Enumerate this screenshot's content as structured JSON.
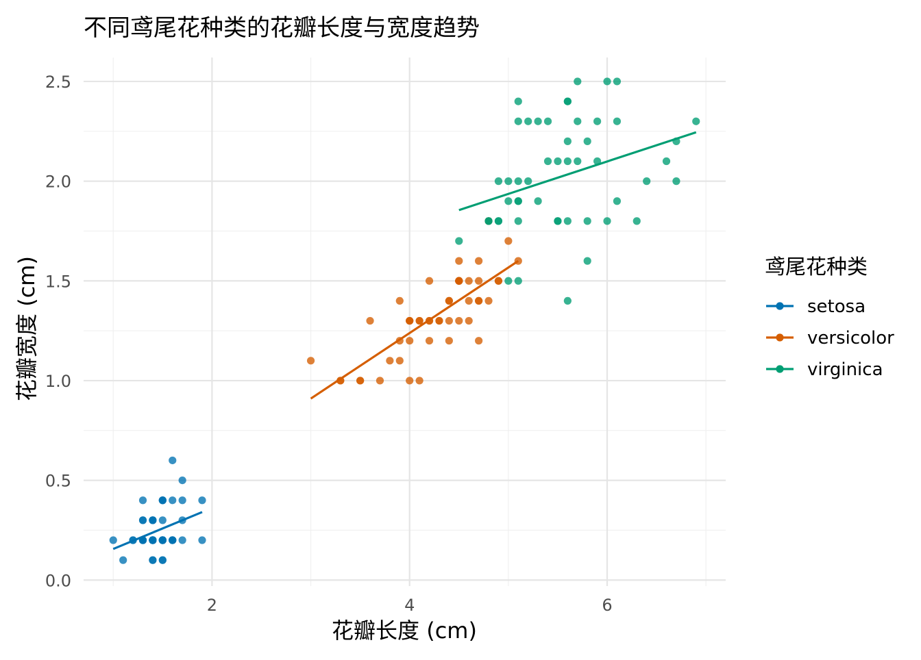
{
  "chart_data": {
    "type": "scatter",
    "title": "不同鸢尾花种类的花瓣长度与宽度趋势",
    "xlabel": "花瓣长度 (cm)",
    "ylabel": "花瓣宽度 (cm)",
    "xlim": [
      0.7,
      7.2
    ],
    "ylim": [
      -0.03,
      2.62
    ],
    "x_ticks": [
      2,
      4,
      6
    ],
    "x_tick_labels": [
      "2",
      "4",
      "6"
    ],
    "y_ticks": [
      0,
      0.5,
      1,
      1.5,
      2,
      2.5
    ],
    "y_tick_labels": [
      "0.0",
      "0.5",
      "1.0",
      "1.5",
      "2.0",
      "2.5"
    ],
    "x_minor_ticks": [
      1,
      3,
      5,
      7
    ],
    "y_minor_ticks": [
      0.25,
      0.75,
      1.25,
      1.75,
      2.25
    ],
    "grid": true,
    "legend": {
      "title": "鸢尾花种类",
      "position": "right"
    },
    "series": [
      {
        "name": "setosa",
        "color": "#0072B2",
        "trend": [
          [
            1.0,
            0.156
          ],
          [
            1.9,
            0.341
          ]
        ],
        "points": [
          [
            1.4,
            0.2
          ],
          [
            1.4,
            0.2
          ],
          [
            1.3,
            0.2
          ],
          [
            1.5,
            0.2
          ],
          [
            1.4,
            0.2
          ],
          [
            1.7,
            0.4
          ],
          [
            1.4,
            0.3
          ],
          [
            1.5,
            0.2
          ],
          [
            1.4,
            0.2
          ],
          [
            1.5,
            0.1
          ],
          [
            1.5,
            0.2
          ],
          [
            1.6,
            0.2
          ],
          [
            1.4,
            0.1
          ],
          [
            1.1,
            0.1
          ],
          [
            1.2,
            0.2
          ],
          [
            1.5,
            0.4
          ],
          [
            1.3,
            0.4
          ],
          [
            1.4,
            0.3
          ],
          [
            1.7,
            0.3
          ],
          [
            1.5,
            0.3
          ],
          [
            1.7,
            0.2
          ],
          [
            1.5,
            0.4
          ],
          [
            1.0,
            0.2
          ],
          [
            1.7,
            0.5
          ],
          [
            1.9,
            0.2
          ],
          [
            1.6,
            0.2
          ],
          [
            1.6,
            0.4
          ],
          [
            1.5,
            0.2
          ],
          [
            1.4,
            0.2
          ],
          [
            1.6,
            0.2
          ],
          [
            1.6,
            0.2
          ],
          [
            1.5,
            0.4
          ],
          [
            1.5,
            0.1
          ],
          [
            1.4,
            0.2
          ],
          [
            1.5,
            0.2
          ],
          [
            1.2,
            0.2
          ],
          [
            1.3,
            0.2
          ],
          [
            1.4,
            0.1
          ],
          [
            1.3,
            0.2
          ],
          [
            1.5,
            0.2
          ],
          [
            1.3,
            0.3
          ],
          [
            1.3,
            0.3
          ],
          [
            1.3,
            0.2
          ],
          [
            1.6,
            0.6
          ],
          [
            1.9,
            0.4
          ],
          [
            1.4,
            0.3
          ],
          [
            1.6,
            0.2
          ],
          [
            1.4,
            0.2
          ],
          [
            1.5,
            0.2
          ],
          [
            1.4,
            0.2
          ]
        ]
      },
      {
        "name": "versicolor",
        "color": "#D55E00",
        "trend": [
          [
            3.0,
            0.91
          ],
          [
            5.1,
            1.6
          ]
        ],
        "points": [
          [
            4.7,
            1.4
          ],
          [
            4.5,
            1.5
          ],
          [
            4.9,
            1.5
          ],
          [
            4.0,
            1.3
          ],
          [
            4.6,
            1.5
          ],
          [
            4.5,
            1.3
          ],
          [
            4.7,
            1.6
          ],
          [
            3.3,
            1.0
          ],
          [
            4.6,
            1.3
          ],
          [
            3.9,
            1.4
          ],
          [
            3.5,
            1.0
          ],
          [
            4.2,
            1.5
          ],
          [
            4.0,
            1.0
          ],
          [
            4.7,
            1.4
          ],
          [
            3.6,
            1.3
          ],
          [
            4.4,
            1.4
          ],
          [
            4.5,
            1.5
          ],
          [
            4.1,
            1.0
          ],
          [
            4.5,
            1.5
          ],
          [
            3.9,
            1.1
          ],
          [
            4.8,
            1.8
          ],
          [
            4.0,
            1.3
          ],
          [
            4.9,
            1.5
          ],
          [
            4.7,
            1.2
          ],
          [
            4.3,
            1.3
          ],
          [
            4.4,
            1.4
          ],
          [
            4.8,
            1.4
          ],
          [
            5.0,
            1.7
          ],
          [
            4.5,
            1.5
          ],
          [
            3.5,
            1.0
          ],
          [
            3.8,
            1.1
          ],
          [
            3.7,
            1.0
          ],
          [
            3.9,
            1.2
          ],
          [
            5.1,
            1.6
          ],
          [
            4.5,
            1.5
          ],
          [
            4.5,
            1.6
          ],
          [
            4.7,
            1.5
          ],
          [
            4.4,
            1.3
          ],
          [
            4.1,
            1.3
          ],
          [
            4.0,
            1.3
          ],
          [
            4.4,
            1.2
          ],
          [
            4.6,
            1.4
          ],
          [
            4.0,
            1.2
          ],
          [
            3.3,
            1.0
          ],
          [
            4.2,
            1.3
          ],
          [
            4.2,
            1.2
          ],
          [
            4.2,
            1.3
          ],
          [
            4.3,
            1.3
          ],
          [
            3.0,
            1.1
          ],
          [
            4.1,
            1.3
          ]
        ]
      },
      {
        "name": "virginica",
        "color": "#009E73",
        "trend": [
          [
            4.5,
            1.855
          ],
          [
            6.9,
            2.245
          ]
        ],
        "points": [
          [
            6.0,
            2.5
          ],
          [
            5.1,
            1.9
          ],
          [
            5.9,
            2.1
          ],
          [
            5.6,
            1.8
          ],
          [
            5.8,
            2.2
          ],
          [
            6.6,
            2.1
          ],
          [
            4.5,
            1.7
          ],
          [
            6.3,
            1.8
          ],
          [
            5.8,
            1.8
          ],
          [
            6.1,
            2.5
          ],
          [
            5.1,
            2.0
          ],
          [
            5.3,
            1.9
          ],
          [
            5.5,
            2.1
          ],
          [
            5.0,
            2.0
          ],
          [
            5.1,
            2.4
          ],
          [
            5.3,
            2.3
          ],
          [
            5.5,
            1.8
          ],
          [
            6.7,
            2.2
          ],
          [
            6.9,
            2.3
          ],
          [
            5.0,
            1.5
          ],
          [
            5.7,
            2.3
          ],
          [
            4.9,
            2.0
          ],
          [
            6.7,
            2.0
          ],
          [
            4.9,
            1.8
          ],
          [
            5.7,
            2.1
          ],
          [
            6.0,
            1.8
          ],
          [
            4.8,
            1.8
          ],
          [
            4.9,
            1.8
          ],
          [
            5.6,
            2.1
          ],
          [
            5.8,
            1.6
          ],
          [
            6.1,
            1.9
          ],
          [
            6.4,
            2.0
          ],
          [
            5.6,
            2.2
          ],
          [
            5.1,
            1.5
          ],
          [
            5.6,
            1.4
          ],
          [
            6.1,
            2.3
          ],
          [
            5.6,
            2.4
          ],
          [
            5.5,
            1.8
          ],
          [
            4.8,
            1.8
          ],
          [
            5.4,
            2.1
          ],
          [
            5.6,
            2.4
          ],
          [
            5.1,
            2.3
          ],
          [
            5.1,
            1.9
          ],
          [
            5.9,
            2.3
          ],
          [
            5.7,
            2.5
          ],
          [
            5.2,
            2.3
          ],
          [
            5.0,
            1.9
          ],
          [
            5.2,
            2.0
          ],
          [
            5.4,
            2.3
          ],
          [
            5.1,
            1.8
          ]
        ]
      }
    ]
  }
}
